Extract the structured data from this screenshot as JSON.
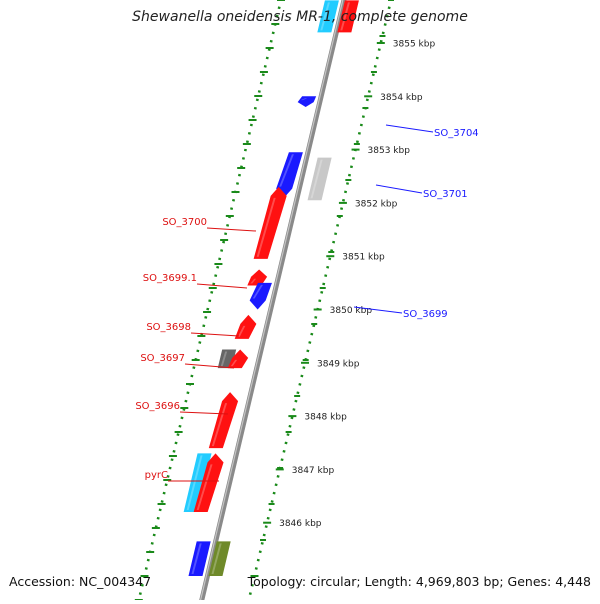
{
  "title": "Shewanella oneidensis MR-1, complete genome",
  "footer": {
    "accession": "Accession: NC_004347",
    "stats": "Topology: circular; Length: 4,969,803 bp; Genes: 4,448"
  },
  "colors": {
    "plus_strand": "#ff1111",
    "minus_strand": "#1a1aff",
    "cyan": "#22ccff",
    "gray": "#c8c8c8",
    "darkgray": "#666666",
    "olive": "#6f8a2a",
    "backbone": "#8a8a8a",
    "ruler": "#1a8a1a",
    "minus_label": "#1a1aff",
    "plus_label": "#dd1111"
  },
  "axis": {
    "unit": "kbp",
    "ticks": [
      {
        "label": "3855 kbp",
        "value": 3855
      },
      {
        "label": "3854 kbp",
        "value": 3854
      },
      {
        "label": "3853 kbp",
        "value": 3853
      },
      {
        "label": "3852 kbp",
        "value": 3852
      },
      {
        "label": "3851 kbp",
        "value": 3851
      },
      {
        "label": "3850 kbp",
        "value": 3850
      },
      {
        "label": "3849 kbp",
        "value": 3849
      },
      {
        "label": "3848 kbp",
        "value": 3848
      },
      {
        "label": "3847 kbp",
        "value": 3847
      },
      {
        "label": "3846 kbp",
        "value": 3846
      }
    ]
  },
  "features": [
    {
      "strand": "minus",
      "color": "cyan",
      "start": 3855.2,
      "end": 3855.8,
      "shape": "block",
      "row": "inner"
    },
    {
      "strand": "minus",
      "color": "plus_strand",
      "start": 3855.2,
      "end": 3855.8,
      "shape": "block",
      "row": "outer"
    },
    {
      "strand": "minus",
      "color": "minus_strand",
      "start": 3853.8,
      "end": 3854.0,
      "shape": "arrow_down",
      "label": "SO_3704"
    },
    {
      "strand": "minus",
      "color": "minus_strand",
      "start": 3852.1,
      "end": 3852.95,
      "shape": "arrow_down",
      "label": null
    },
    {
      "strand": "minus",
      "color": "gray",
      "start": 3852.05,
      "end": 3852.85,
      "shape": "block",
      "row": "far",
      "label": "SO_3701"
    },
    {
      "strand": "plus",
      "color": "plus_strand",
      "start": 3850.95,
      "end": 3852.3,
      "shape": "arrow_up",
      "label": "SO_3700"
    },
    {
      "strand": "plus",
      "color": "plus_strand",
      "start": 3850.45,
      "end": 3850.75,
      "shape": "arrow_up",
      "label": "SO_3699.1"
    },
    {
      "strand": "minus",
      "color": "minus_strand",
      "start": 3850.0,
      "end": 3850.5,
      "shape": "arrow_down",
      "label": "SO_3699"
    },
    {
      "strand": "plus",
      "color": "plus_strand",
      "start": 3849.45,
      "end": 3849.9,
      "shape": "arrow_up",
      "label": "SO_3698"
    },
    {
      "strand": "plus",
      "color": "darkgray",
      "start": 3848.9,
      "end": 3849.25,
      "shape": "block",
      "row": "far_plus",
      "label": "SO_3697"
    },
    {
      "strand": "plus",
      "color": "plus_strand",
      "start": 3848.9,
      "end": 3849.25,
      "shape": "arrow_up",
      "label": null
    },
    {
      "strand": "plus",
      "color": "plus_strand",
      "start": 3847.4,
      "end": 3848.45,
      "shape": "arrow_up",
      "label": "SO_3696"
    },
    {
      "strand": "plus",
      "color": "cyan",
      "start": 3846.2,
      "end": 3847.3,
      "shape": "block",
      "row": "far_plus",
      "label": "pyrC"
    },
    {
      "strand": "plus",
      "color": "plus_strand",
      "start": 3846.2,
      "end": 3847.3,
      "shape": "arrow_up",
      "label": null
    },
    {
      "strand": "minus",
      "color": "minus_strand",
      "start": 3845.0,
      "end": 3845.65,
      "shape": "block",
      "row": "inner"
    },
    {
      "strand": "minus",
      "color": "olive",
      "start": 3845.0,
      "end": 3845.65,
      "shape": "block",
      "row": "outer"
    }
  ]
}
